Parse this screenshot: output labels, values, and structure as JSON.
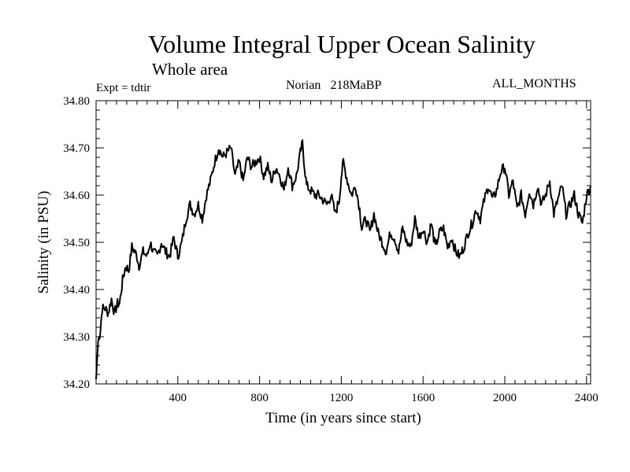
{
  "chart_data": {
    "type": "line",
    "title": "Volume Integral Upper Ocean Salinity",
    "subtitle": "Whole area",
    "annotations": {
      "expt": "Expt = tdtir",
      "stage": "Norian",
      "age": "218MaBP",
      "months": "ALL_MONTHS"
    },
    "xlabel": "Time (in years since start)",
    "ylabel": "Salinity (in PSU)",
    "xlim": [
      0,
      2420
    ],
    "ylim": [
      34.2,
      34.8
    ],
    "xticks": [
      400,
      800,
      1200,
      1600,
      2000,
      2400
    ],
    "xtick_labels": [
      "400",
      "800",
      "1200",
      "1600",
      "2000",
      "2400"
    ],
    "yticks": [
      34.2,
      34.3,
      34.4,
      34.5,
      34.6,
      34.7,
      34.8
    ],
    "ytick_labels": [
      "34.20",
      "34.30",
      "34.40",
      "34.50",
      "34.60",
      "34.70",
      "34.80"
    ],
    "grid": false,
    "series": [
      {
        "name": "Salinity",
        "x": [
          0,
          10,
          20,
          30,
          45,
          60,
          75,
          90,
          105,
          115,
          130,
          145,
          160,
          175,
          190,
          200,
          210,
          230,
          250,
          265,
          280,
          300,
          320,
          340,
          360,
          380,
          400,
          420,
          440,
          460,
          480,
          500,
          520,
          540,
          560,
          580,
          600,
          620,
          640,
          660,
          680,
          700,
          720,
          740,
          760,
          780,
          800,
          820,
          840,
          860,
          880,
          900,
          920,
          940,
          960,
          980,
          1000,
          1010,
          1020,
          1030,
          1050,
          1070,
          1090,
          1110,
          1130,
          1150,
          1170,
          1190,
          1200,
          1210,
          1230,
          1250,
          1270,
          1290,
          1300,
          1320,
          1340,
          1360,
          1380,
          1400,
          1420,
          1440,
          1460,
          1480,
          1500,
          1520,
          1540,
          1560,
          1580,
          1600,
          1620,
          1640,
          1660,
          1680,
          1700,
          1720,
          1740,
          1760,
          1780,
          1800,
          1820,
          1840,
          1860,
          1880,
          1900,
          1920,
          1940,
          1960,
          1980,
          2000,
          2020,
          2040,
          2060,
          2080,
          2100,
          2120,
          2140,
          2160,
          2180,
          2200,
          2220,
          2240,
          2260,
          2280,
          2300,
          2320,
          2340,
          2360,
          2380,
          2400,
          2420
        ],
        "y": [
          34.21,
          34.29,
          34.31,
          34.36,
          34.36,
          34.35,
          34.38,
          34.35,
          34.37,
          34.37,
          34.42,
          34.45,
          34.44,
          34.49,
          34.48,
          34.47,
          34.45,
          34.48,
          34.47,
          34.5,
          34.48,
          34.47,
          34.5,
          34.48,
          34.47,
          34.51,
          34.47,
          34.5,
          34.55,
          34.58,
          34.56,
          34.58,
          34.55,
          34.6,
          34.63,
          34.67,
          34.7,
          34.68,
          34.69,
          34.7,
          34.64,
          34.67,
          34.63,
          34.68,
          34.66,
          34.67,
          34.68,
          34.64,
          34.66,
          34.63,
          34.66,
          34.64,
          34.61,
          34.66,
          34.62,
          34.64,
          34.69,
          34.71,
          34.66,
          34.62,
          34.61,
          34.6,
          34.6,
          34.59,
          34.58,
          34.6,
          34.56,
          34.59,
          34.64,
          34.67,
          34.63,
          34.6,
          34.62,
          34.57,
          34.53,
          34.55,
          34.52,
          34.56,
          34.52,
          34.5,
          34.48,
          34.52,
          34.51,
          34.48,
          34.53,
          34.5,
          34.49,
          34.55,
          34.51,
          34.53,
          34.5,
          34.54,
          34.49,
          34.52,
          34.53,
          34.49,
          34.51,
          34.48,
          34.47,
          34.49,
          34.52,
          34.54,
          34.57,
          34.55,
          34.59,
          34.62,
          34.59,
          34.61,
          34.65,
          34.66,
          34.6,
          34.63,
          34.57,
          34.6,
          34.56,
          34.61,
          34.58,
          34.62,
          34.58,
          34.6,
          34.63,
          34.56,
          34.59,
          34.62,
          34.56,
          34.58,
          34.6,
          34.56,
          34.54,
          34.6,
          34.62
        ]
      }
    ]
  }
}
